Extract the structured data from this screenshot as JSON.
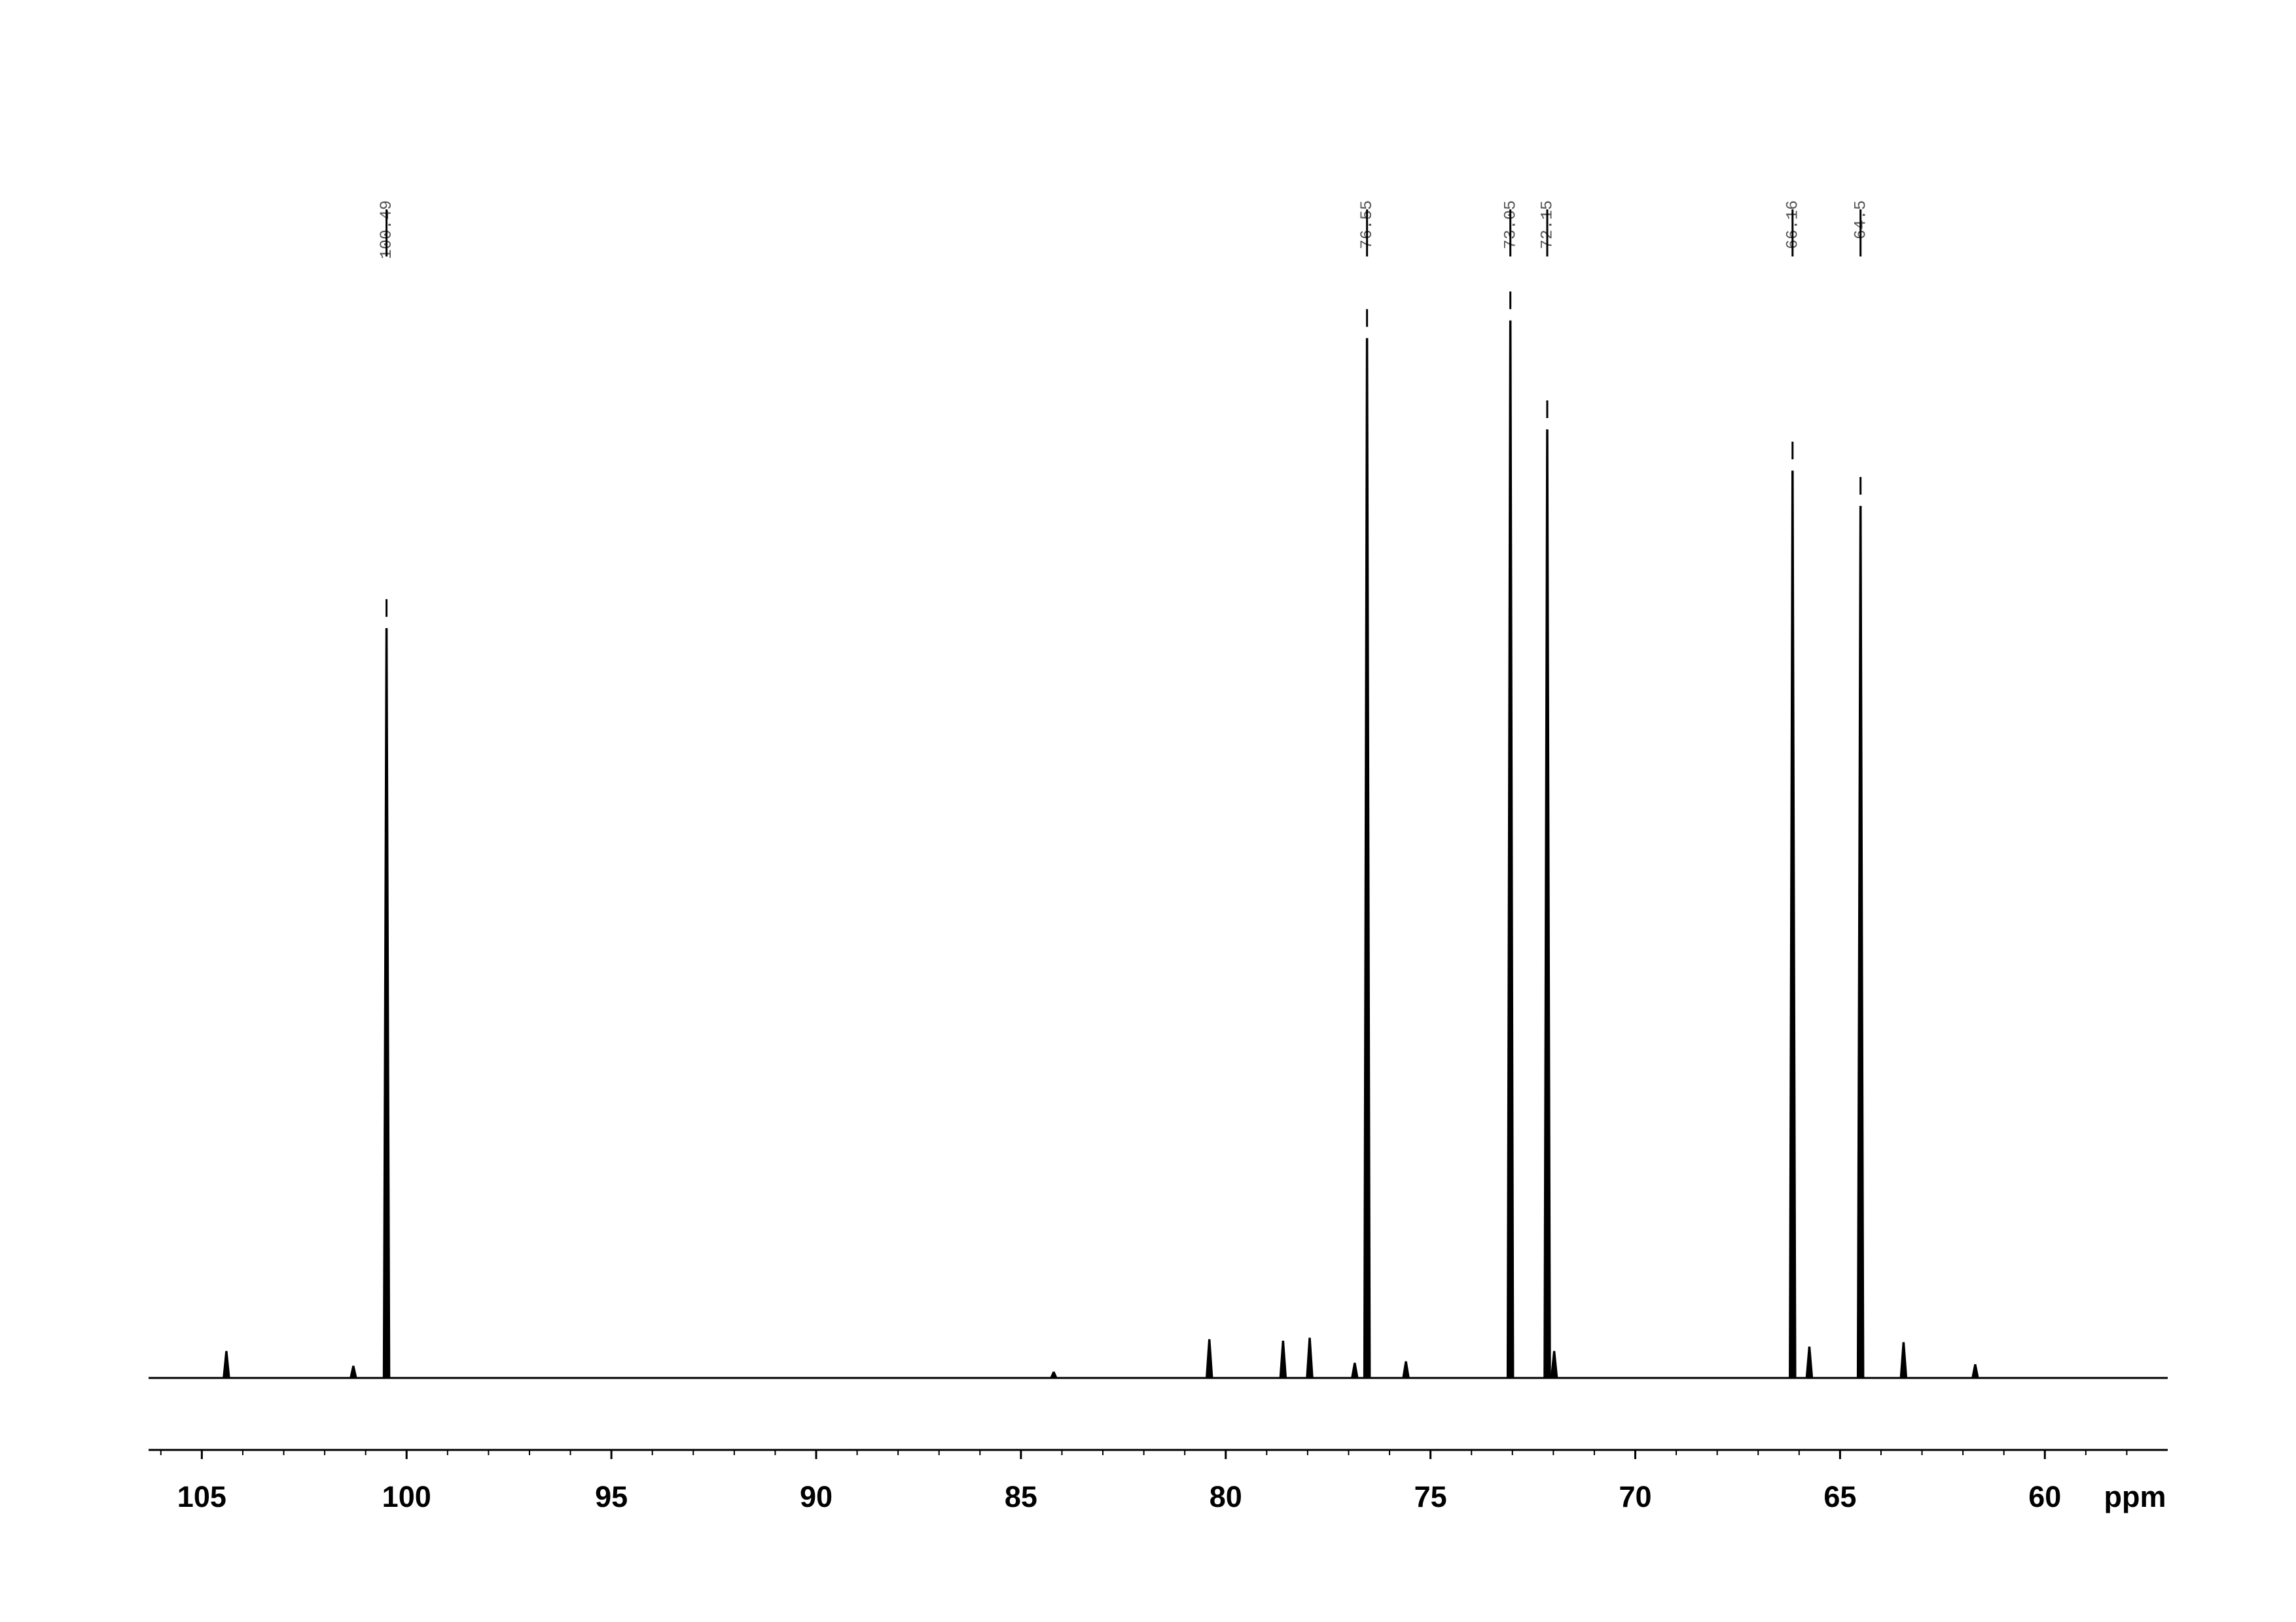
{
  "chart_data": {
    "type": "spectrum",
    "x_label": "ppm",
    "xlim": [
      106.3,
      57.0
    ],
    "ylim": [
      0,
      936
    ],
    "xticks": [
      105,
      100,
      95,
      90,
      85,
      80,
      75,
      70,
      65,
      60
    ],
    "xminorticks": [
      106,
      104,
      103,
      102,
      101,
      99,
      98,
      97,
      96,
      94,
      93,
      92,
      91,
      89,
      88,
      87,
      86,
      84,
      83,
      82,
      81,
      79,
      78,
      77,
      76,
      74,
      73,
      72,
      71,
      69,
      68,
      67,
      66,
      64,
      63,
      62,
      61,
      59,
      58
    ],
    "color": "#000000",
    "label_color": "#555555",
    "peaks_x": [
      104.4,
      101.3,
      100.49,
      84.2,
      80.4,
      78.6,
      77.95,
      76.85,
      76.55,
      75.6,
      73.05,
      72.15,
      71.98,
      66.16,
      65.75,
      64.5,
      63.45,
      61.7
    ],
    "values": [
      18,
      8,
      509,
      4,
      26,
      25,
      27,
      10,
      706,
      11,
      718,
      644,
      18,
      616,
      21,
      592,
      24,
      9
    ],
    "peak_labels": [
      100.49,
      76.55,
      73.05,
      72.15,
      66.16,
      64.5
    ]
  }
}
